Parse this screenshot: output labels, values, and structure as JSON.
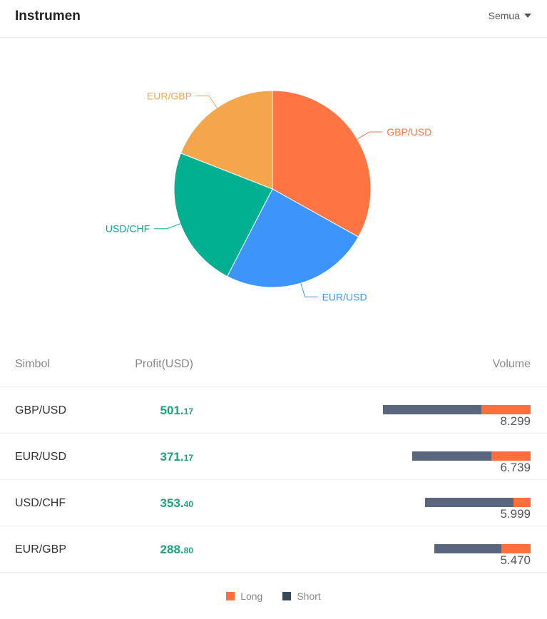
{
  "header": {
    "title": "Instrumen",
    "filter": "Semua"
  },
  "chart_data": {
    "type": "pie",
    "slices": [
      {
        "label": "GBP/USD",
        "value": 501.17,
        "color": "#ff7443"
      },
      {
        "label": "EUR/USD",
        "value": 371.17,
        "color": "#3d95fb"
      },
      {
        "label": "USD/CHF",
        "value": 353.4,
        "color": "#00b091"
      },
      {
        "label": "EUR/GBP",
        "value": 288.8,
        "color": "#f6a64a"
      }
    ]
  },
  "table": {
    "headers": {
      "symbol": "Simbol",
      "profit": "Profit(USD)",
      "volume": "Volume"
    },
    "rows": [
      {
        "symbol": "GBP/USD",
        "profit_int": "501.",
        "profit_dec": "17",
        "volume": "8.299",
        "long": 2.0,
        "short": 4.0
      },
      {
        "symbol": "EUR/USD",
        "profit_int": "371.",
        "profit_dec": "17",
        "volume": "6.739",
        "long": 1.6,
        "short": 3.2
      },
      {
        "symbol": "USD/CHF",
        "profit_int": "353.",
        "profit_dec": "40",
        "volume": "5.999",
        "long": 0.7,
        "short": 3.6
      },
      {
        "symbol": "EUR/GBP",
        "profit_int": "288.",
        "profit_dec": "80",
        "volume": "5.470",
        "long": 1.2,
        "short": 2.7
      }
    ]
  },
  "legend": {
    "long": "Long",
    "short": "Short",
    "long_color": "#ff6f3c",
    "short_color": "#34495e"
  }
}
